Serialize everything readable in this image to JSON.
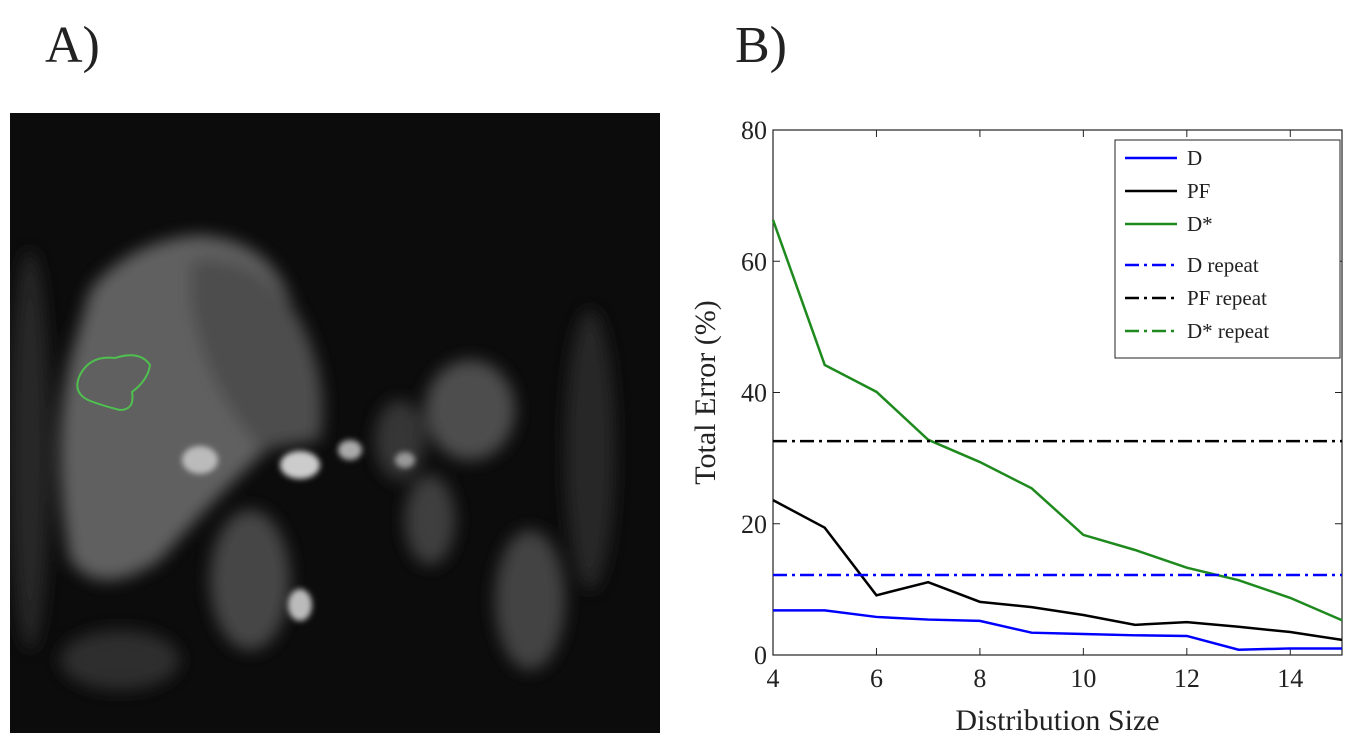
{
  "panel_a": {
    "label": "A)"
  },
  "chart_data": {
    "type": "line",
    "panel_label": "B)",
    "xlabel": "Distribution Size",
    "ylabel": "Total Error (%)",
    "x": [
      4,
      5,
      6,
      7,
      8,
      9,
      10,
      11,
      12,
      13,
      14,
      15
    ],
    "xlim": [
      4,
      15
    ],
    "xticks": [
      4,
      6,
      8,
      10,
      12,
      14
    ],
    "ylim": [
      0,
      80
    ],
    "yticks": [
      0,
      20,
      40,
      60,
      80
    ],
    "legend": "upper right",
    "series": [
      {
        "name": "D",
        "color": "#0000ff",
        "style": "solid",
        "values": [
          6.8,
          6.8,
          5.8,
          5.4,
          5.2,
          3.4,
          3.2,
          3.0,
          2.9,
          0.8,
          1.0,
          1.0
        ]
      },
      {
        "name": "PF",
        "color": "#000000",
        "style": "solid",
        "values": [
          23.6,
          19.4,
          9.1,
          11.1,
          8.1,
          7.3,
          6.1,
          4.6,
          5.0,
          4.3,
          3.5,
          2.3
        ]
      },
      {
        "name": "D*",
        "color": "#1e8a1e",
        "style": "solid",
        "values": [
          66.3,
          44.2,
          40.1,
          32.8,
          29.4,
          25.4,
          18.3,
          16.0,
          13.3,
          11.4,
          8.7,
          5.3
        ]
      },
      {
        "name": "D repeat",
        "color": "#0000ff",
        "style": "dashdot",
        "values": [
          12.2,
          12.2,
          12.2,
          12.2,
          12.2,
          12.2,
          12.2,
          12.2,
          12.2,
          12.2,
          12.2,
          12.2
        ]
      },
      {
        "name": "PF repeat",
        "color": "#000000",
        "style": "dashdot",
        "values": [
          32.6,
          32.6,
          32.6,
          32.6,
          32.6,
          32.6,
          32.6,
          32.6,
          32.6,
          32.6,
          32.6,
          32.6
        ]
      },
      {
        "name": "D* repeat",
        "color": "#1e8a1e",
        "style": "dashdot",
        "values": [
          null,
          null,
          null,
          null,
          null,
          null,
          null,
          null,
          null,
          null,
          null,
          null
        ]
      }
    ]
  }
}
